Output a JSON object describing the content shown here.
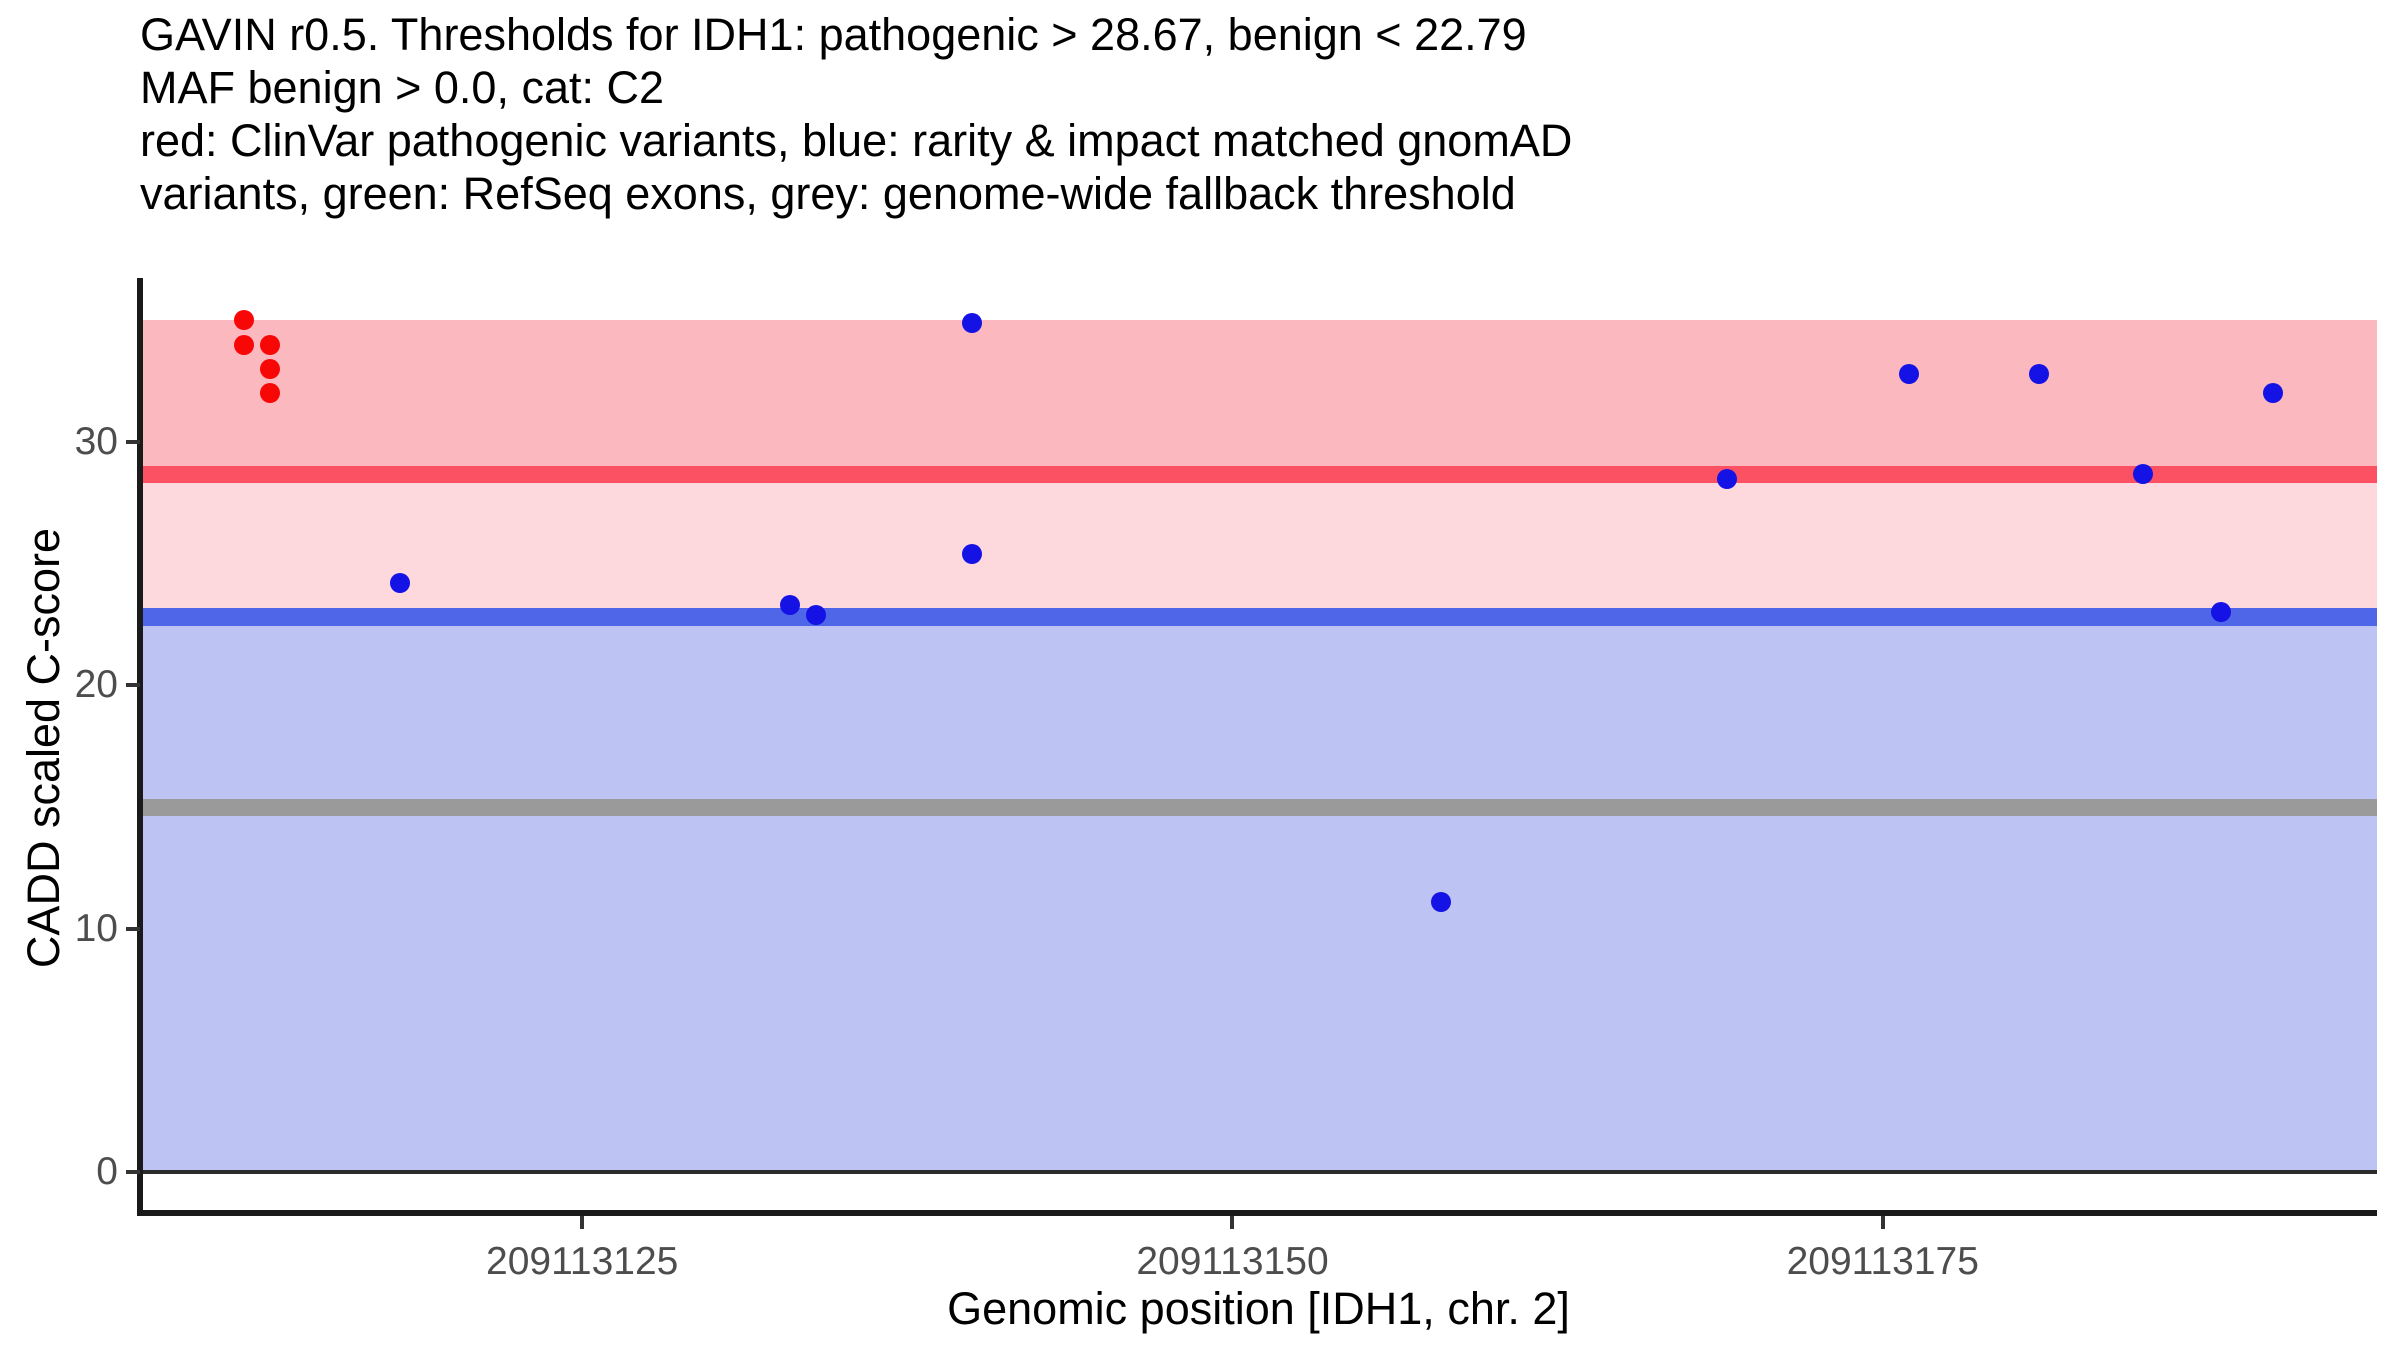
{
  "title_lines": [
    "GAVIN r0.5. Thresholds for IDH1: pathogenic > 28.67, benign < 22.79",
    "MAF benign > 0.0, cat: C2",
    "red: ClinVar pathogenic variants, blue: rarity & impact matched gnomAD",
    "variants, green: RefSeq exons, grey: genome-wide fallback threshold"
  ],
  "chart_data": {
    "type": "scatter",
    "xlabel": "Genomic position [IDH1, chr. 2]",
    "ylabel": "CADD scaled C-score",
    "x_range": [
      209113108,
      209113194
    ],
    "y_range": [
      -1.64,
      36.74
    ],
    "grid": false,
    "legend": "none (color meanings described in title text)",
    "x_ticks": [
      {
        "value": 209113125,
        "label": "209113125"
      },
      {
        "value": 209113150,
        "label": "209113150"
      },
      {
        "value": 209113175,
        "label": "209113175"
      }
    ],
    "y_ticks": [
      {
        "value": 0,
        "label": "0"
      },
      {
        "value": 10,
        "label": "10"
      },
      {
        "value": 20,
        "label": "20"
      },
      {
        "value": 30,
        "label": "30"
      }
    ],
    "bands": [
      {
        "name": "pathogenic-region",
        "from": 28.67,
        "to": 35.0,
        "color": "#FBB9BF"
      },
      {
        "name": "intermediate-region",
        "from": 22.79,
        "to": 28.67,
        "color": "#FDD8DD"
      },
      {
        "name": "benign-region",
        "from": 0.0,
        "to": 22.79,
        "color": "#BDC4F4"
      }
    ],
    "threshold_lines": [
      {
        "name": "pathogenic-threshold-line",
        "value": 28.67,
        "color": "#FB5162",
        "half_width": 0.35
      },
      {
        "name": "benign-threshold-line",
        "value": 22.79,
        "color": "#5066E8",
        "half_width": 0.37
      },
      {
        "name": "genome-wide-fallback-line",
        "value": 15.0,
        "color": "#9A9A9A",
        "half_width": 0.35
      },
      {
        "name": "zero-baseline",
        "value": 0.0,
        "color": "#2B2B2B",
        "half_width": 0.08
      }
    ],
    "series": [
      {
        "name": "clinvar-pathogenic-variants",
        "color": "#F80707",
        "points": [
          {
            "x": 209113112,
            "y": 35.0
          },
          {
            "x": 209113112,
            "y": 34.0
          },
          {
            "x": 209113113,
            "y": 34.0
          },
          {
            "x": 209113113,
            "y": 33.0
          },
          {
            "x": 209113113,
            "y": 32.0
          }
        ]
      },
      {
        "name": "gnomad-matched-variants",
        "color": "#1512E6",
        "points": [
          {
            "x": 209113118,
            "y": 24.2
          },
          {
            "x": 209113133,
            "y": 23.3
          },
          {
            "x": 209113134,
            "y": 22.9
          },
          {
            "x": 209113140,
            "y": 25.4
          },
          {
            "x": 209113140,
            "y": 34.9
          },
          {
            "x": 209113158,
            "y": 11.1
          },
          {
            "x": 209113169,
            "y": 28.5
          },
          {
            "x": 209113176,
            "y": 32.8
          },
          {
            "x": 209113181,
            "y": 32.8
          },
          {
            "x": 209113185,
            "y": 28.7
          },
          {
            "x": 209113188,
            "y": 23.0
          },
          {
            "x": 209113190,
            "y": 32.0
          }
        ]
      }
    ]
  }
}
